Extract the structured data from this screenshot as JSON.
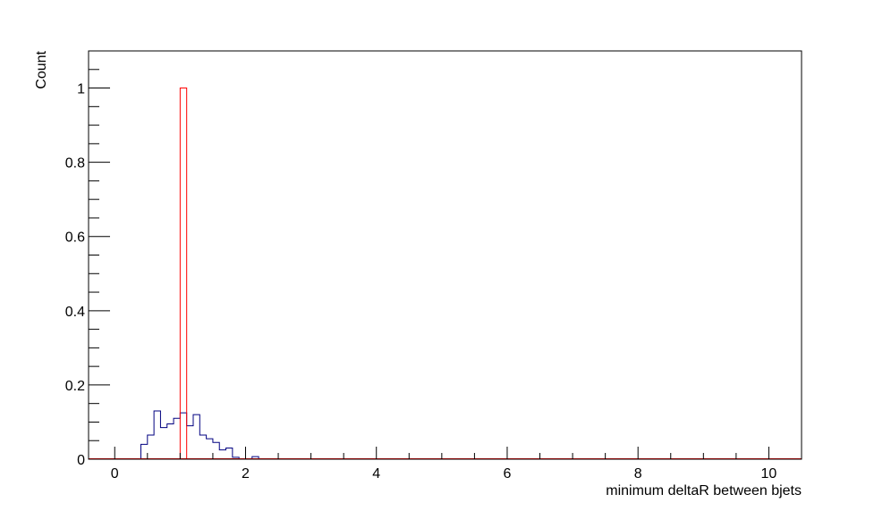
{
  "chart_data": {
    "type": "bar",
    "title": "",
    "xlabel": "minimum deltaR between bjets",
    "ylabel": "Count",
    "xlim": [
      -0.4,
      10.5
    ],
    "ylim": [
      0,
      1.1
    ],
    "x_ticks": [
      0,
      2,
      4,
      6,
      8,
      10
    ],
    "x_tick_labels": [
      "0",
      "2",
      "4",
      "6",
      "8",
      "10"
    ],
    "y_ticks": [
      0,
      0.2,
      0.4,
      0.6,
      0.8,
      1
    ],
    "y_tick_labels": [
      "0",
      "0.2",
      "0.4",
      "0.6",
      "0.8",
      "1"
    ],
    "grid": false,
    "bin_width": 0.1,
    "series": [
      {
        "color": "#000080",
        "bin_starts": [
          0.4,
          0.5,
          0.6,
          0.7,
          0.8,
          0.9,
          1.0,
          1.1,
          1.2,
          1.3,
          1.4,
          1.5,
          1.6,
          1.7,
          1.8,
          1.9,
          2.0,
          2.1,
          2.2
        ],
        "values": [
          0.04,
          0.065,
          0.13,
          0.085,
          0.095,
          0.11,
          0.125,
          0.09,
          0.12,
          0.065,
          0.055,
          0.045,
          0.025,
          0.03,
          0.005,
          0.0,
          0.0,
          0.007,
          0.0
        ]
      },
      {
        "color": "#ff0000",
        "bin_starts": [
          1.0
        ],
        "values": [
          1.0
        ]
      }
    ]
  }
}
